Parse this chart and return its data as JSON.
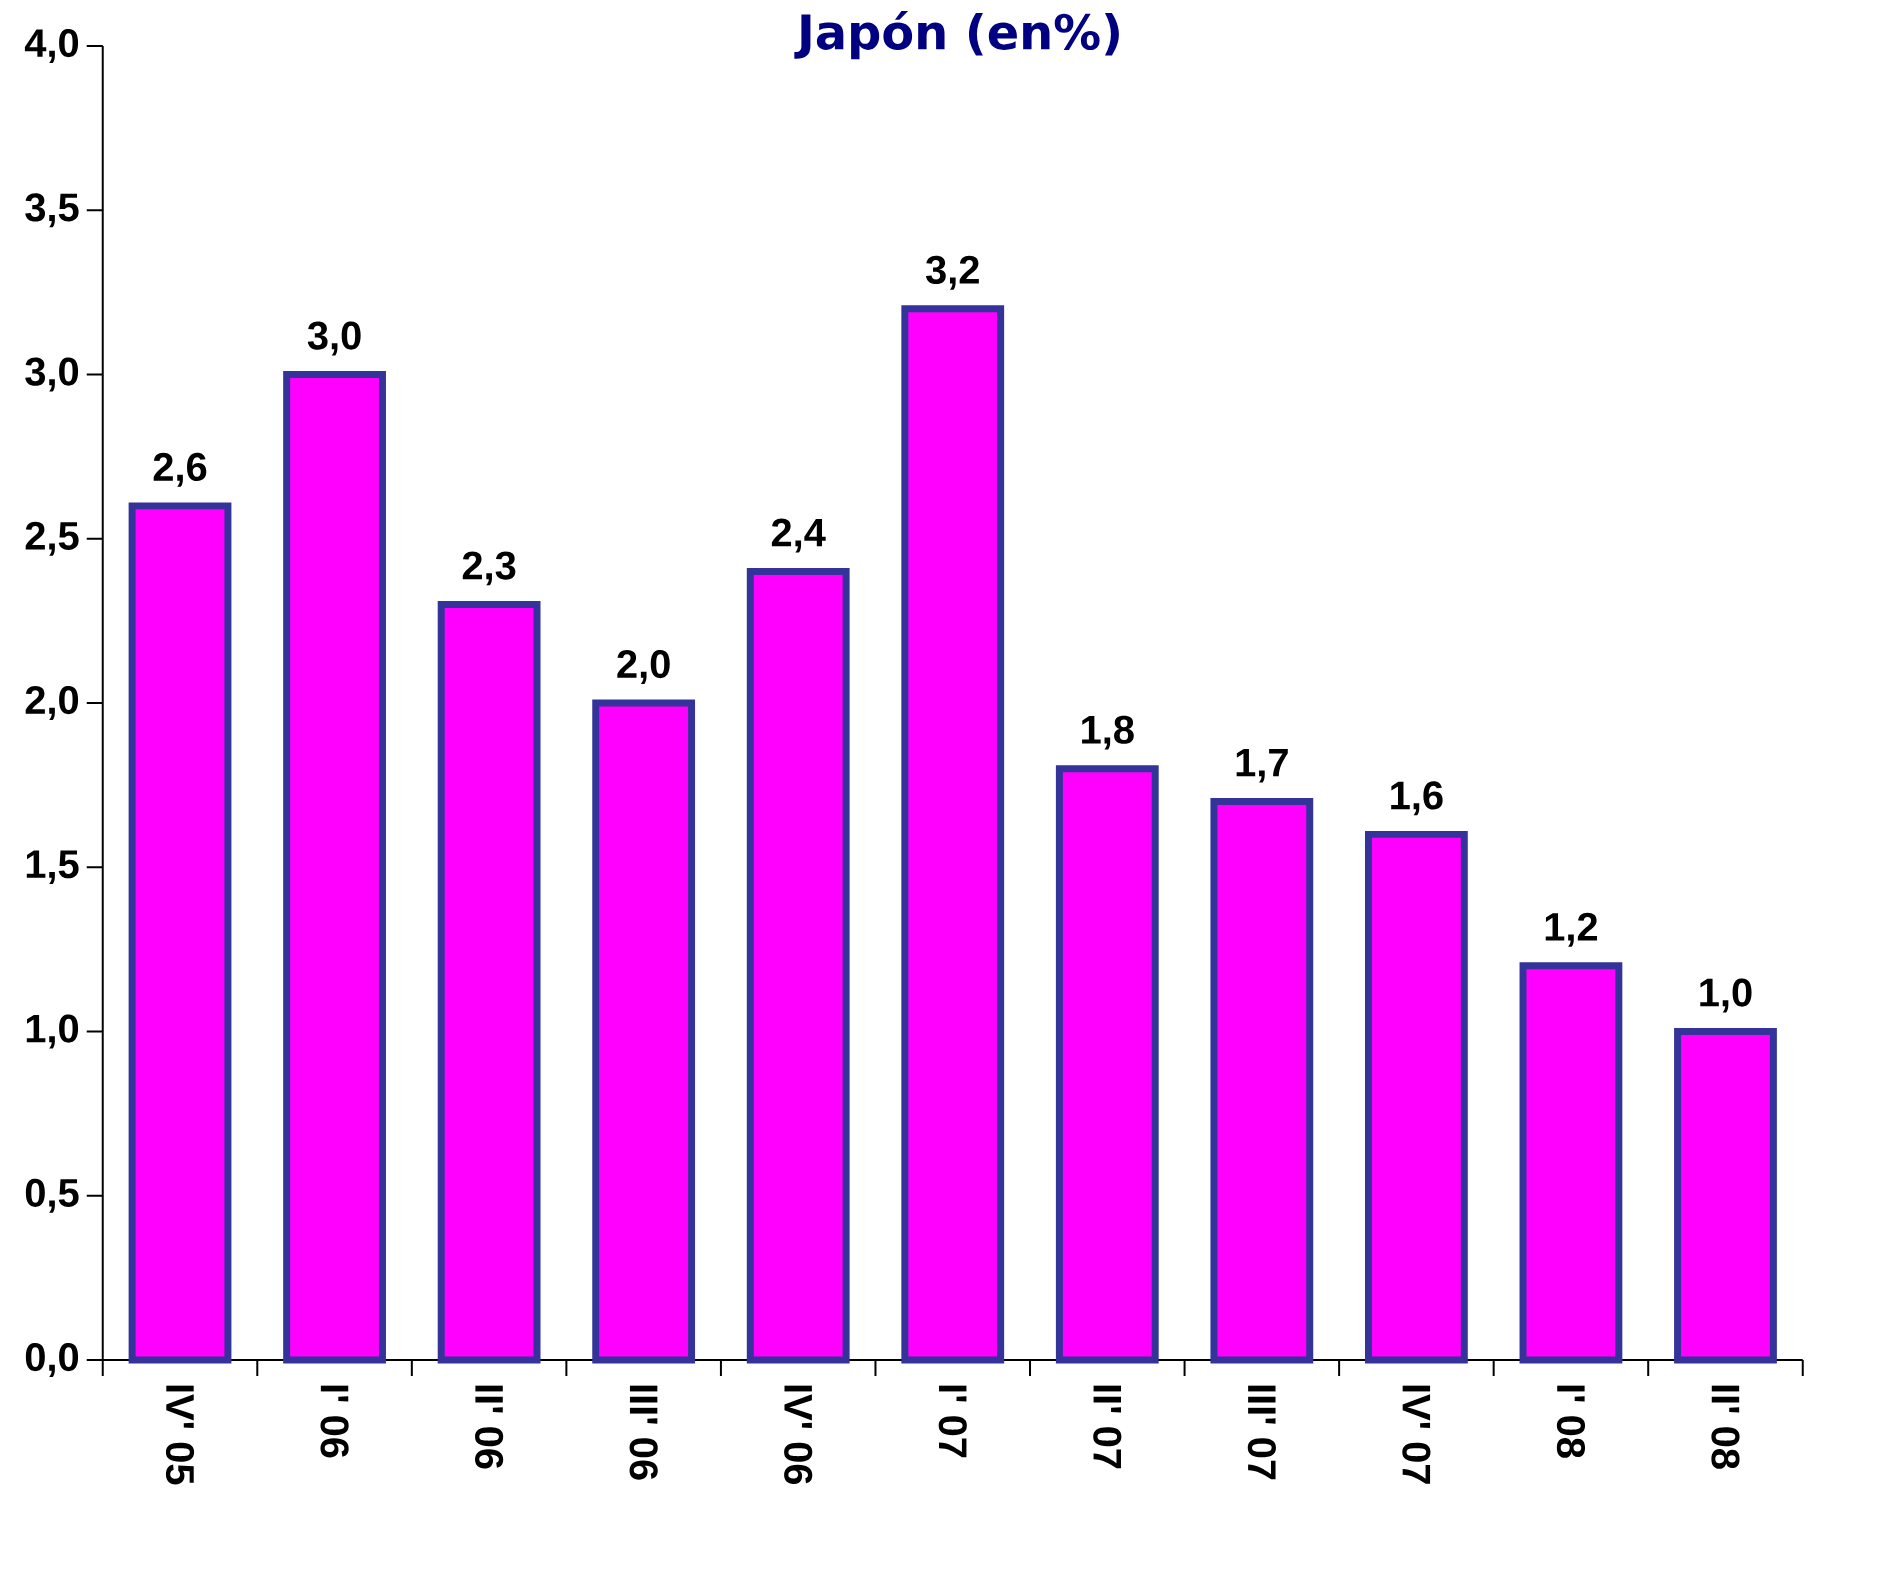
{
  "chart_data": {
    "type": "bar",
    "title": "Japón (en%)",
    "categories": [
      "IV' 05",
      "I' 06",
      "II' 06",
      "III' 06",
      "IV' 06",
      "I' 07",
      "II' 07",
      "III' 07",
      "IV' 07",
      "I' 08",
      "II' 08"
    ],
    "values": [
      2.6,
      3.0,
      2.3,
      2.0,
      2.4,
      3.2,
      1.8,
      1.7,
      1.6,
      1.2,
      1.0
    ],
    "value_labels": [
      "2,6",
      "3,0",
      "2,3",
      "2,0",
      "2,4",
      "3,2",
      "1,8",
      "1,7",
      "1,6",
      "1,2",
      "1,0"
    ],
    "color": "#ff00ff",
    "ylim": [
      0,
      4
    ],
    "yticks": [
      {
        "value": 0,
        "label": "0,0"
      },
      {
        "value": 0.5,
        "label": "0,5"
      },
      {
        "value": 1,
        "label": "1,0"
      },
      {
        "value": 1.5,
        "label": "1,5"
      },
      {
        "value": 2,
        "label": "2,0"
      },
      {
        "value": 2.5,
        "label": "2,5"
      },
      {
        "value": 3,
        "label": "3,0"
      },
      {
        "value": 3.5,
        "label": "3,5"
      },
      {
        "value": 4,
        "label": "4,0"
      }
    ],
    "grid": false
  }
}
